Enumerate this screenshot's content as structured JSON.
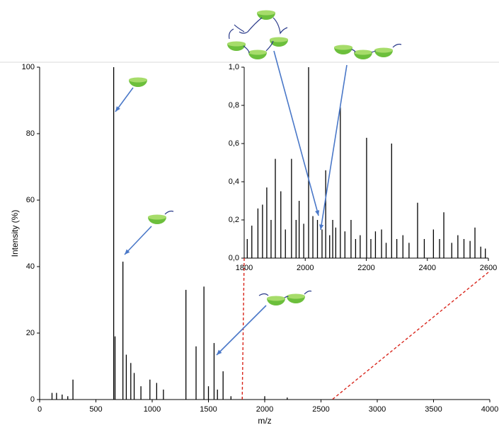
{
  "chart_data": [
    {
      "type": "stem",
      "x_label": "m/z",
      "y_label": "Intensity (%)",
      "color": "#000000",
      "xlim": [
        0,
        4000
      ],
      "xticks": [
        0,
        500,
        1000,
        1500,
        2000,
        2500,
        3000,
        3500,
        4000
      ],
      "ylim": [
        0,
        100
      ],
      "yticks": [
        0,
        20,
        40,
        60,
        80,
        100
      ],
      "x": [
        110,
        150,
        200,
        250,
        296,
        658,
        670,
        740,
        770,
        810,
        840,
        900,
        980,
        1040,
        1100,
        1300,
        1390,
        1460,
        1500,
        1550,
        1580,
        1630,
        1700,
        1800,
        2000,
        2200
      ],
      "values": [
        2,
        2,
        1.5,
        1,
        6,
        100,
        19,
        41.5,
        13.5,
        11,
        8,
        4,
        6,
        5,
        3,
        33,
        16,
        34,
        4,
        17,
        3,
        8.5,
        1,
        0.8,
        1,
        0.6
      ]
    },
    {
      "type": "stem",
      "color": "#000000",
      "xlim": [
        1800,
        2600
      ],
      "xticks": [
        1800,
        2000,
        2200,
        2400,
        2600
      ],
      "ylim": [
        0,
        1.0
      ],
      "yticks": [
        {
          "value": 0,
          "label": "0,0"
        },
        {
          "value": 0.2,
          "label": "0,2"
        },
        {
          "value": 0.4,
          "label": "0,4"
        },
        {
          "value": 0.6,
          "label": "0,6"
        },
        {
          "value": 0.8,
          "label": "0,8"
        },
        {
          "value": 1.0,
          "label": "1,0"
        }
      ],
      "x": [
        1810,
        1825,
        1845,
        1860,
        1874,
        1888,
        1902,
        1920,
        1935,
        1955,
        1970,
        1980,
        1995,
        2011,
        2025,
        2040,
        2055,
        2067,
        2080,
        2090,
        2100,
        2115,
        2130,
        2150,
        2165,
        2180,
        2201,
        2215,
        2230,
        2250,
        2265,
        2283,
        2300,
        2320,
        2340,
        2368,
        2390,
        2420,
        2440,
        2454,
        2480,
        2500,
        2520,
        2540,
        2556,
        2575,
        2590
      ],
      "values": [
        0.1,
        0.17,
        0.26,
        0.28,
        0.37,
        0.2,
        0.52,
        0.35,
        0.15,
        0.52,
        0.2,
        0.3,
        0.18,
        1.0,
        0.22,
        0.2,
        0.15,
        0.46,
        0.12,
        0.2,
        0.16,
        0.79,
        0.14,
        0.2,
        0.1,
        0.12,
        0.63,
        0.1,
        0.14,
        0.15,
        0.08,
        0.6,
        0.1,
        0.12,
        0.08,
        0.29,
        0.1,
        0.15,
        0.1,
        0.24,
        0.08,
        0.12,
        0.1,
        0.09,
        0.16,
        0.06,
        0.05
      ]
    }
  ]
}
